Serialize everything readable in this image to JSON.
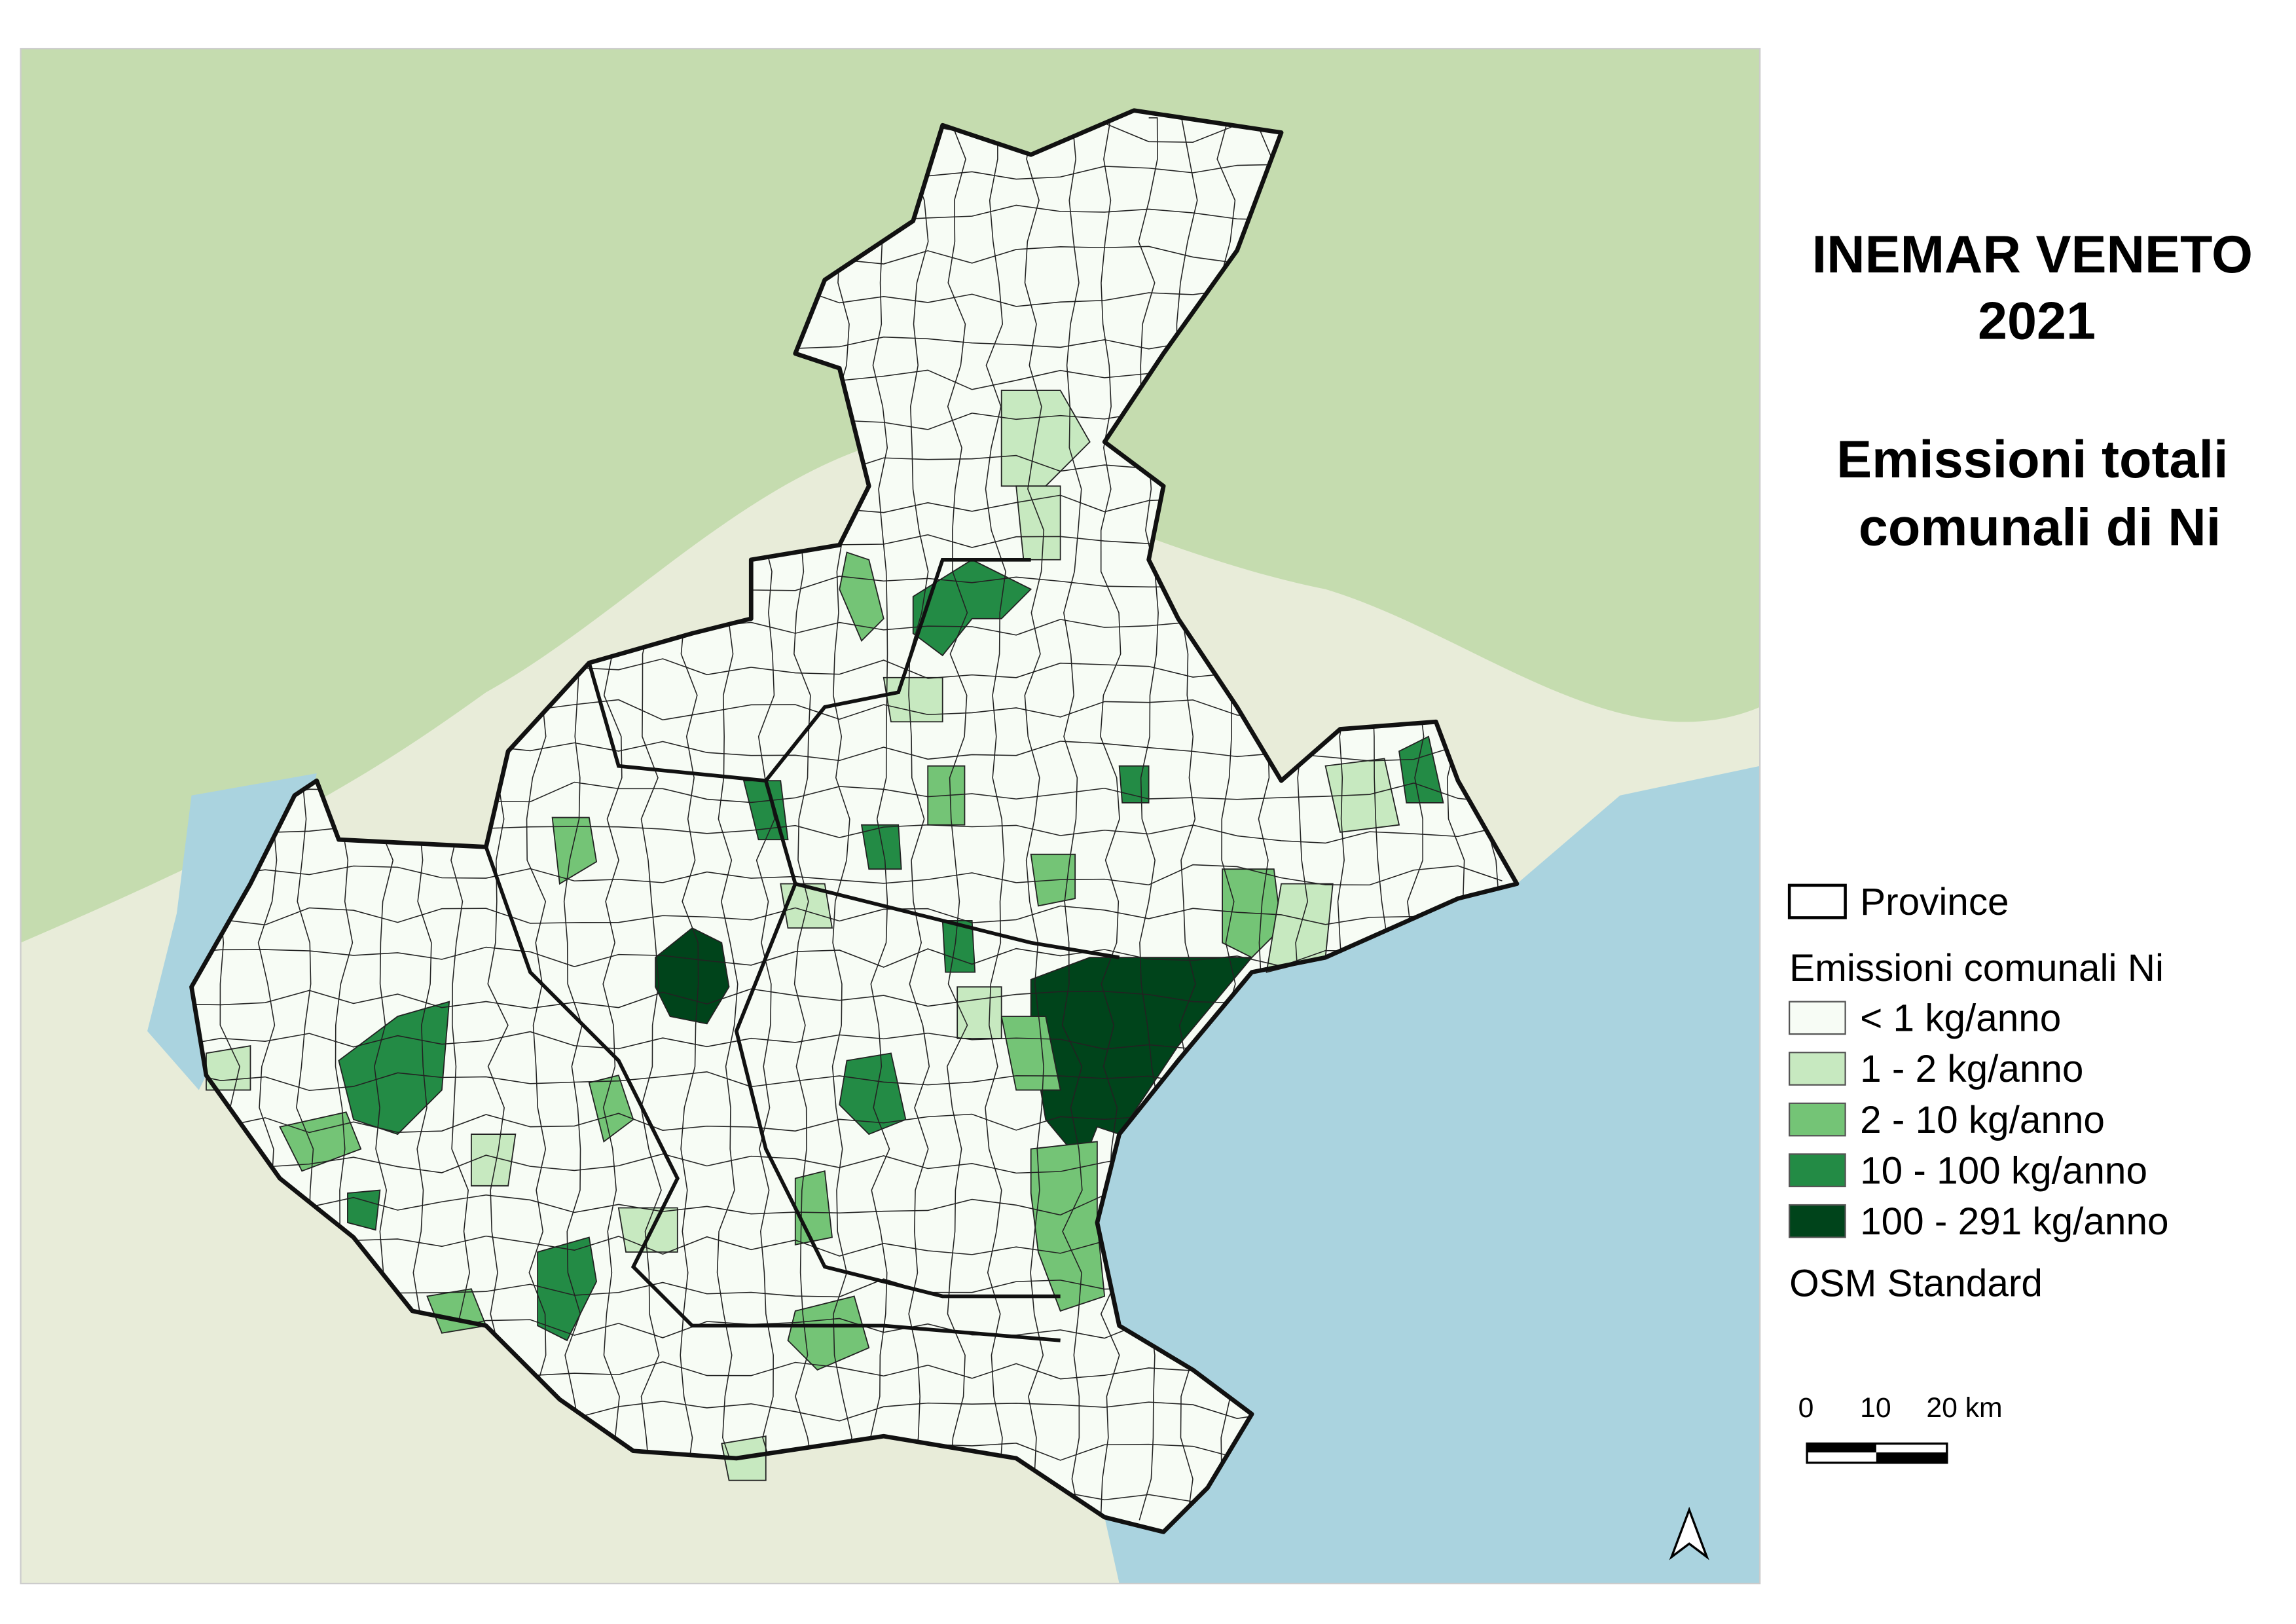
{
  "title": [
    "INEMAR VENETO",
    "2021",
    "Emissioni totali",
    "comunali di Ni"
  ],
  "legend": {
    "province": "Province",
    "heading": "Emissioni comunali Ni",
    "classes": [
      {
        "label": "< 1 kg/anno",
        "color": "#f7fcf5"
      },
      {
        "label": "1 - 2 kg/anno",
        "color": "#c7e9c0"
      },
      {
        "label": "2 - 10 kg/anno",
        "color": "#74c476"
      },
      {
        "label": "10 - 100 kg/anno",
        "color": "#238b45"
      },
      {
        "label": "100 - 291 kg/anno",
        "color": "#00441b"
      }
    ],
    "basemap": "OSM Standard"
  },
  "scale_bar": {
    "labels": [
      "0",
      "10",
      "20 km"
    ]
  }
}
